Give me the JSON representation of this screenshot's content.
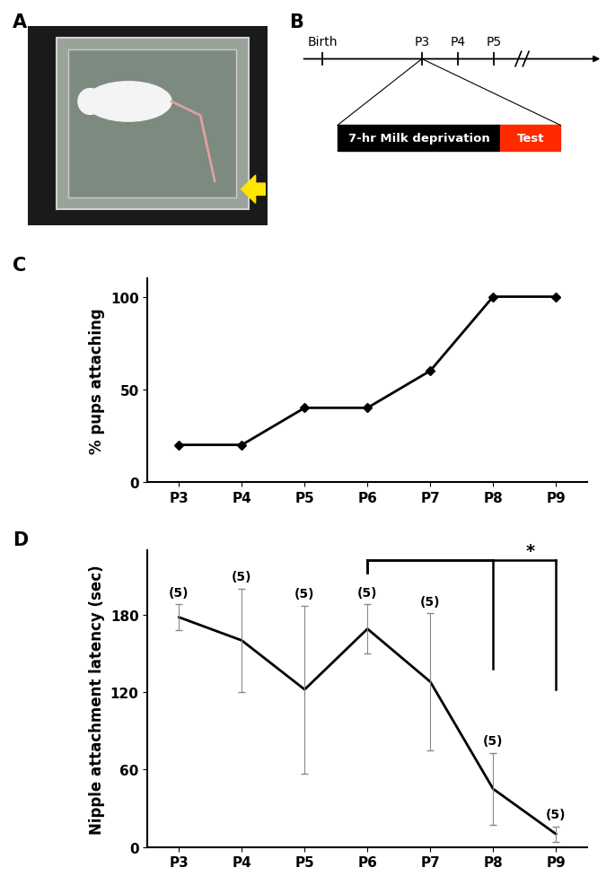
{
  "panel_labels": [
    "A",
    "B",
    "C",
    "D"
  ],
  "timeline": {
    "ticks": [
      "Birth",
      "P3",
      "P4",
      "P5"
    ],
    "expanded": "P3",
    "phases": [
      {
        "label": "7-hr Milk deprivation",
        "color": "#000000"
      },
      {
        "label": "Test",
        "color": "#ff2a00"
      }
    ]
  },
  "chart_data": [
    {
      "type": "line",
      "categories": [
        "P3",
        "P4",
        "P5",
        "P6",
        "P7",
        "P8",
        "P9"
      ],
      "values": [
        20,
        20,
        40,
        40,
        60,
        100,
        100
      ],
      "color": "#000000",
      "marker": "diamond",
      "ylabel": "% pups attaching",
      "ylim": [
        0,
        110
      ],
      "yticks": [
        0,
        50,
        100
      ]
    },
    {
      "type": "line",
      "categories": [
        "P3",
        "P4",
        "P5",
        "P6",
        "P7",
        "P8",
        "P9"
      ],
      "values": [
        178,
        160,
        122,
        169,
        128,
        45,
        10
      ],
      "errors": [
        10,
        40,
        65,
        19,
        53,
        28,
        6
      ],
      "n_labels": [
        "(5)",
        "(5)",
        "(5)",
        "(5)",
        "(5)",
        "(5)",
        "(5)"
      ],
      "significance": {
        "label": "*",
        "pairs": [
          [
            "P6",
            "P8"
          ],
          [
            "P6",
            "P9"
          ]
        ]
      },
      "color": "#000000",
      "ylabel": "Nipple attachment latency (sec)",
      "ylim": [
        0,
        230
      ],
      "yticks": [
        0,
        60,
        120,
        180
      ]
    }
  ]
}
